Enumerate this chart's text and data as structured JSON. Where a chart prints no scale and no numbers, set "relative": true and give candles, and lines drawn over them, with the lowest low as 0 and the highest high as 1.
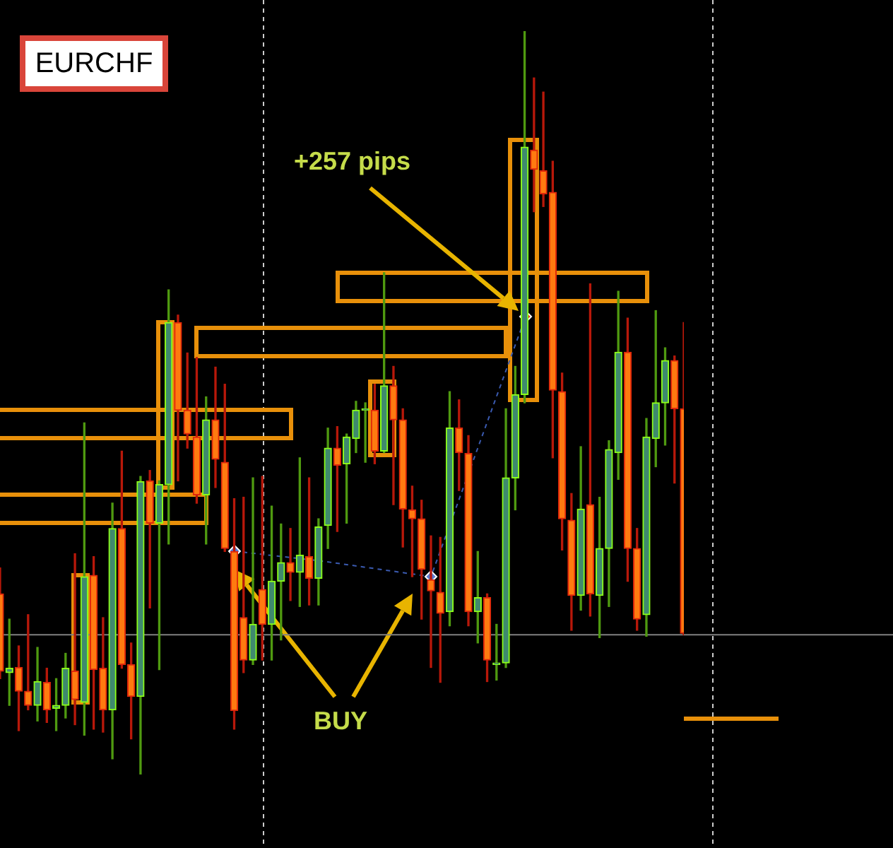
{
  "chart_data": {
    "type": "candlestick",
    "title": "EURCHF",
    "relative": true,
    "categories": [
      null,
      null,
      null,
      null,
      null,
      null,
      null,
      null,
      null,
      null,
      null,
      null,
      null,
      null,
      null,
      null,
      null,
      null,
      null,
      null,
      null,
      null,
      null,
      null,
      null,
      null,
      null,
      null,
      null,
      null,
      null,
      null,
      null,
      null,
      null,
      null,
      null,
      null,
      null,
      null,
      null,
      null,
      null,
      null,
      null,
      null,
      null,
      null,
      null,
      null,
      null,
      null,
      null,
      null,
      null,
      null,
      null,
      null,
      null,
      null,
      null,
      null,
      null,
      null,
      null,
      null,
      null,
      null,
      null,
      null,
      null,
      null,
      null,
      null
    ],
    "ohlc": [
      [
        0.243,
        0.278,
        0.129,
        0.139
      ],
      [
        0.137,
        0.209,
        0.093,
        0.143
      ],
      [
        0.144,
        0.173,
        0.059,
        0.112
      ],
      [
        0.112,
        0.215,
        0.087,
        0.093
      ],
      [
        0.093,
        0.171,
        0.072,
        0.125
      ],
      [
        0.124,
        0.143,
        0.07,
        0.087
      ],
      [
        0.089,
        0.129,
        0.059,
        0.093
      ],
      [
        0.093,
        0.163,
        0.076,
        0.143
      ],
      [
        0.139,
        0.297,
        0.067,
        0.101
      ],
      [
        0.097,
        0.473,
        0.053,
        0.266
      ],
      [
        0.268,
        0.293,
        0.061,
        0.141
      ],
      [
        0.143,
        0.211,
        0.057,
        0.087
      ],
      [
        0.087,
        0.365,
        0.021,
        0.331
      ],
      [
        0.331,
        0.435,
        0.143,
        0.148
      ],
      [
        0.148,
        0.177,
        0.048,
        0.105
      ],
      [
        0.105,
        0.401,
        0,
        0.394
      ],
      [
        0.395,
        0.409,
        0.224,
        0.338
      ],
      [
        0.338,
        0.395,
        0.141,
        0.39
      ],
      [
        0.39,
        0.652,
        0.31,
        0.608
      ],
      [
        0.608,
        0.618,
        0.395,
        0.49
      ],
      [
        0.49,
        0.567,
        0.439,
        0.458
      ],
      [
        0.454,
        0.561,
        0.365,
        0.376
      ],
      [
        0.376,
        0.508,
        0.31,
        0.477
      ],
      [
        0.477,
        0.548,
        0.386,
        0.424
      ],
      [
        0.42,
        0.525,
        0.3,
        0.304
      ],
      [
        0.3,
        0.371,
        0.061,
        0.086
      ],
      [
        0.211,
        0.373,
        0.137,
        0.154
      ],
      [
        0.154,
        0.399,
        0.148,
        0.202
      ],
      [
        0.249,
        0.401,
        0.154,
        0.202
      ],
      [
        0.202,
        0.361,
        0.154,
        0.26
      ],
      [
        0.26,
        0.337,
        0.181,
        0.285
      ],
      [
        0.285,
        0.331,
        0.234,
        0.272
      ],
      [
        0.272,
        0.426,
        0.226,
        0.295
      ],
      [
        0.293,
        0.399,
        0.228,
        0.264
      ],
      [
        0.264,
        0.344,
        0.228,
        0.333
      ],
      [
        0.335,
        0.466,
        0.304,
        0.439
      ],
      [
        0.439,
        0.468,
        0.327,
        0.416
      ],
      [
        0.418,
        0.458,
        0.338,
        0.454
      ],
      [
        0.452,
        0.502,
        0.433,
        0.49
      ],
      [
        0.49,
        0.5,
        0.42,
        0.49
      ],
      [
        0.49,
        0.525,
        0.418,
        0.435
      ],
      [
        0.435,
        0.675,
        0.433,
        0.523
      ],
      [
        0.523,
        0.549,
        0.363,
        0.477
      ],
      [
        0.477,
        0.492,
        0.306,
        0.357
      ],
      [
        0.356,
        0.388,
        0.266,
        0.344
      ],
      [
        0.344,
        0.369,
        0.209,
        0.276
      ],
      [
        0.262,
        0.321,
        0.144,
        0.247
      ],
      [
        0.245,
        0.319,
        0.124,
        0.217
      ],
      [
        0.219,
        0.515,
        0.2,
        0.466
      ],
      [
        0.466,
        0.504,
        0.382,
        0.433
      ],
      [
        0.432,
        0.456,
        0.2,
        0.219
      ],
      [
        0.219,
        0.3,
        0.177,
        0.238
      ],
      [
        0.238,
        0.243,
        0.125,
        0.154
      ],
      [
        0.148,
        0.202,
        0.127,
        0.15
      ],
      [
        0.15,
        0.492,
        0.144,
        0.399
      ],
      [
        0.399,
        0.549,
        0.356,
        0.511
      ],
      [
        0.511,
        1,
        0.5,
        0.844
      ],
      [
        0.84,
        0.937,
        0.757,
        0.814
      ],
      [
        0.812,
        0.918,
        0.764,
        0.781
      ],
      [
        0.783,
        0.825,
        0.426,
        0.517
      ],
      [
        0.515,
        0.54,
        0.302,
        0.344
      ],
      [
        0.342,
        0.378,
        0.194,
        0.241
      ],
      [
        0.241,
        0.441,
        0.221,
        0.357
      ],
      [
        0.363,
        0.66,
        0.213,
        0.243
      ],
      [
        0.241,
        0.373,
        0.184,
        0.304
      ],
      [
        0.304,
        0.449,
        0.226,
        0.437
      ],
      [
        0.433,
        0.65,
        0.397,
        0.568
      ],
      [
        0.568,
        0.614,
        0.26,
        0.304
      ],
      [
        0.304,
        0.331,
        0.194,
        0.209
      ],
      [
        0.215,
        0.479,
        0.186,
        0.454
      ],
      [
        0.452,
        0.624,
        0.414,
        0.5
      ],
      [
        0.5,
        0.574,
        0.443,
        0.557
      ],
      [
        0.557,
        0.563,
        0.392,
        0.492
      ],
      [
        0.492,
        0.608,
        0.188,
        0.19
      ]
    ],
    "ref_lines": [
      {
        "axis": "y",
        "value": 0.188,
        "color": "#808080"
      }
    ],
    "annotations": [
      "+257 pips",
      "BUY"
    ],
    "legend": false
  }
}
